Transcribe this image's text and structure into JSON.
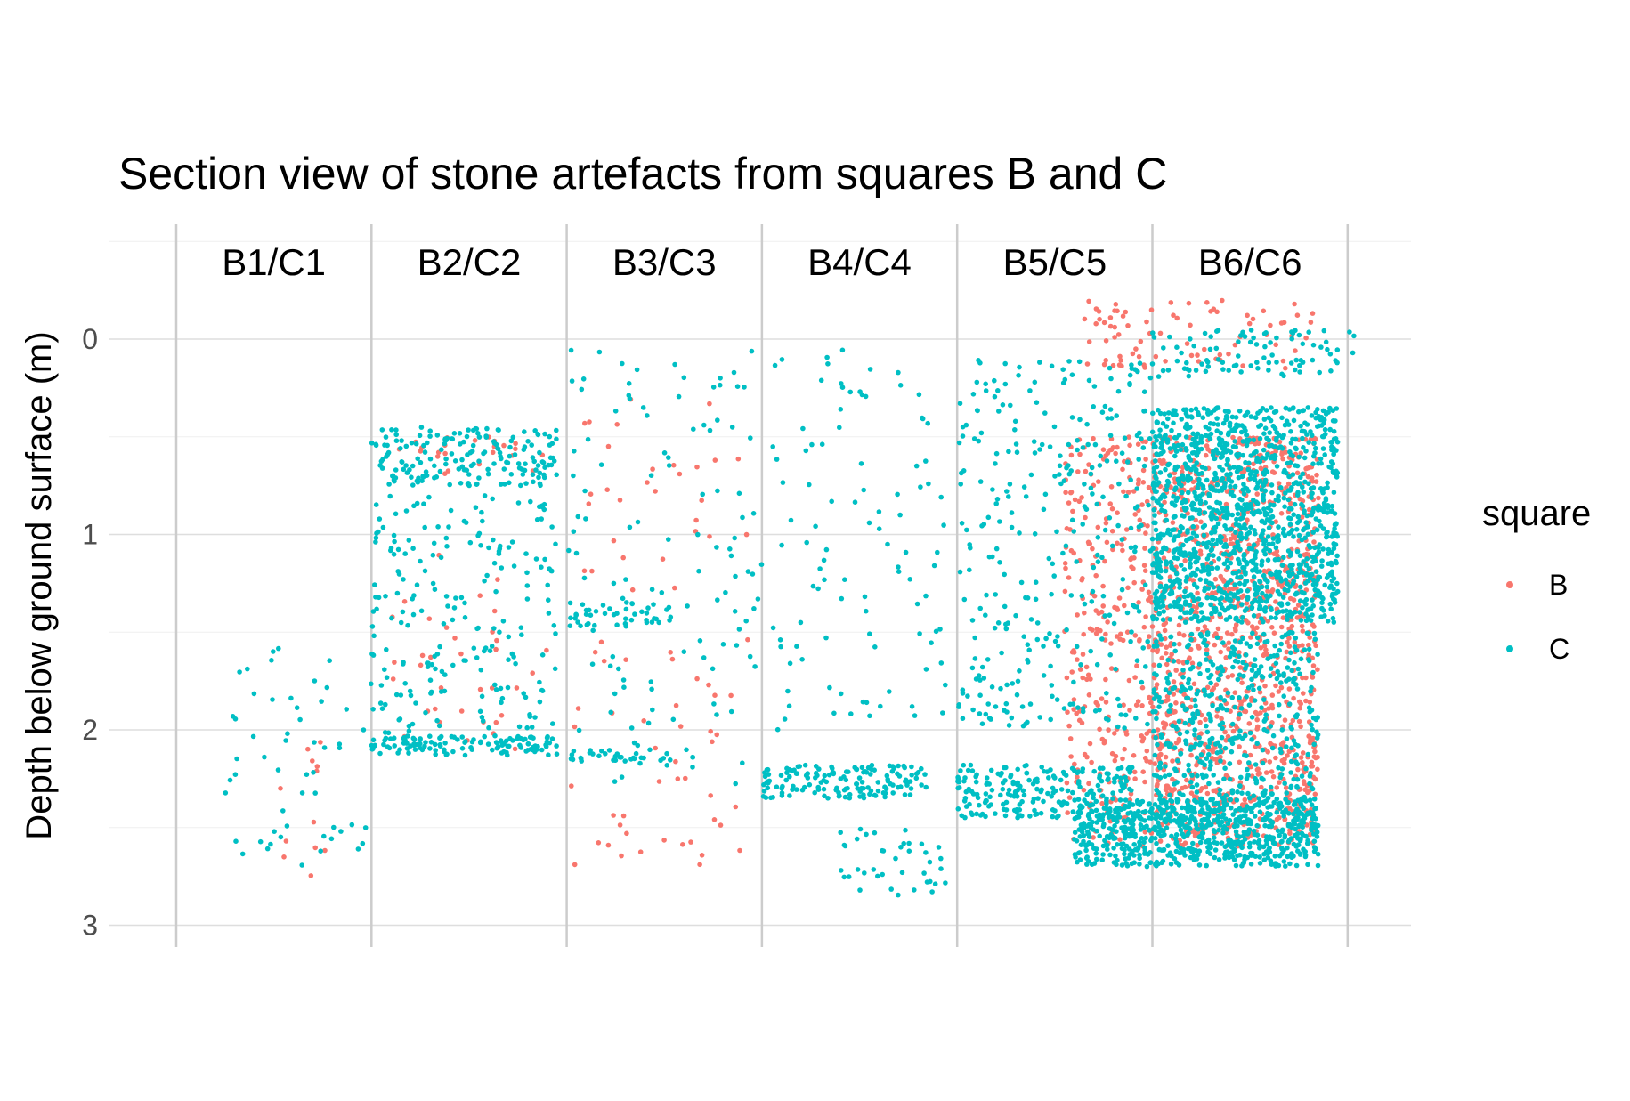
{
  "chart_data": {
    "type": "scatter",
    "title": "Section view of stone artefacts from squares B and C",
    "xlabel": "",
    "ylabel": "Depth below ground surface (m)",
    "y_axis": {
      "reversed": true,
      "ylim": [
        -0.5,
        3.05
      ],
      "ticks": [
        0,
        1,
        2,
        3
      ],
      "grid": true
    },
    "x_axis": {
      "ticks_visible": false,
      "xlim": [
        0,
        6.4
      ]
    },
    "section_labels": [
      "B1/C1",
      "B2/C2",
      "B3/C3",
      "B4/C4",
      "B5/C5",
      "B6/C6"
    ],
    "section_boundaries": [
      0,
      1,
      2,
      3,
      4,
      5,
      6
    ],
    "legend": {
      "title": "square",
      "placement": "right",
      "entries": [
        "B",
        "C"
      ]
    },
    "colors": {
      "B": "#F8766D",
      "C": "#00BFC4"
    },
    "series": [
      {
        "name": "B",
        "clusters": [
          {
            "x": [
              0.5,
              0.8
            ],
            "y": [
              1.9,
              2.75
            ],
            "n": 12
          },
          {
            "x": [
              1.0,
              1.9
            ],
            "y": [
              0.5,
              0.7
            ],
            "n": 25
          },
          {
            "x": [
              1.1,
              1.9
            ],
            "y": [
              1.1,
              2.1
            ],
            "n": 35
          },
          {
            "x": [
              2.0,
              2.95
            ],
            "y": [
              0.3,
              1.3
            ],
            "n": 30
          },
          {
            "x": [
              2.0,
              2.95
            ],
            "y": [
              1.5,
              2.7
            ],
            "n": 45
          },
          {
            "x": [
              4.55,
              5.0
            ],
            "y": [
              0.5,
              2.6
            ],
            "n": 280
          },
          {
            "x": [
              5.0,
              5.85
            ],
            "y": [
              0.5,
              2.6
            ],
            "n": 1100
          },
          {
            "x": [
              4.6,
              5.85
            ],
            "y": [
              -0.2,
              0.15
            ],
            "n": 80
          }
        ]
      },
      {
        "name": "C",
        "clusters": [
          {
            "x": [
              0.25,
              1.0
            ],
            "y": [
              1.55,
              2.7
            ],
            "n": 55
          },
          {
            "x": [
              1.0,
              1.95
            ],
            "y": [
              0.45,
              0.75
            ],
            "n": 180
          },
          {
            "x": [
              1.0,
              1.95
            ],
            "y": [
              0.8,
              2.05
            ],
            "n": 210
          },
          {
            "x": [
              1.0,
              1.95
            ],
            "y": [
              2.03,
              2.13
            ],
            "n": 120
          },
          {
            "x": [
              2.0,
              2.55
            ],
            "y": [
              1.35,
              1.48
            ],
            "n": 40
          },
          {
            "x": [
              2.0,
              3.0
            ],
            "y": [
              0.05,
              2.3
            ],
            "n": 120
          },
          {
            "x": [
              2.0,
              2.55
            ],
            "y": [
              2.1,
              2.16
            ],
            "n": 35
          },
          {
            "x": [
              3.05,
              3.95
            ],
            "y": [
              0.05,
              2.0
            ],
            "n": 100
          },
          {
            "x": [
              3.0,
              3.85
            ],
            "y": [
              2.18,
              2.35
            ],
            "n": 150
          },
          {
            "x": [
              3.4,
              3.95
            ],
            "y": [
              2.5,
              2.85
            ],
            "n": 40
          },
          {
            "x": [
              4.0,
              4.9
            ],
            "y": [
              2.18,
              2.45
            ],
            "n": 220
          },
          {
            "x": [
              4.0,
              5.0
            ],
            "y": [
              0.1,
              2.0
            ],
            "n": 320
          },
          {
            "x": [
              4.6,
              5.85
            ],
            "y": [
              2.35,
              2.7
            ],
            "n": 700
          },
          {
            "x": [
              5.0,
              5.95
            ],
            "y": [
              0.35,
              1.45
            ],
            "n": 1300
          },
          {
            "x": [
              5.0,
              5.85
            ],
            "y": [
              1.5,
              2.5
            ],
            "n": 500
          },
          {
            "x": [
              5.0,
              6.05
            ],
            "y": [
              -0.05,
              0.2
            ],
            "n": 90
          }
        ]
      }
    ]
  }
}
